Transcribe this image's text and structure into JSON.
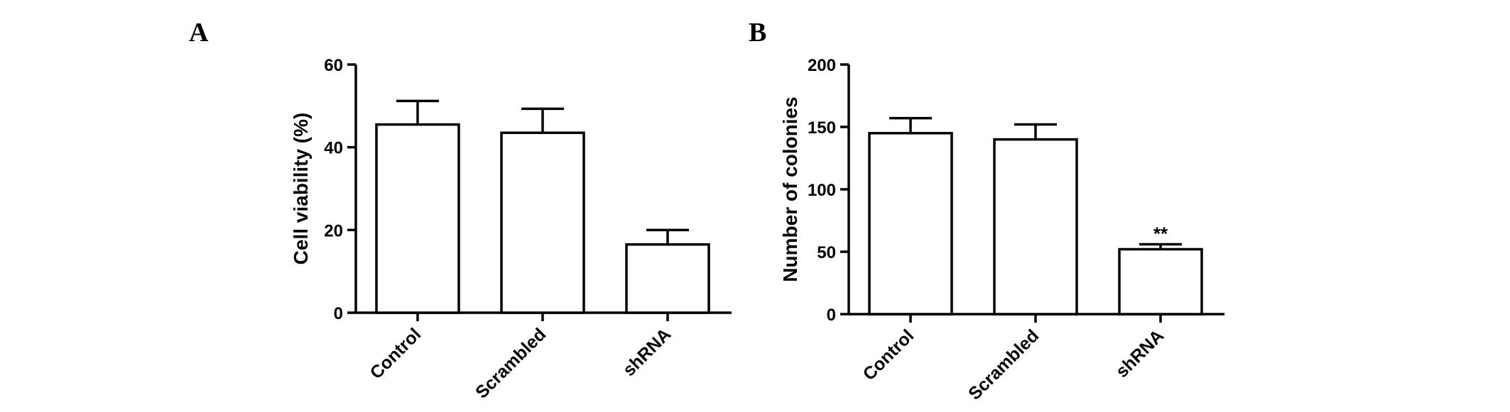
{
  "chart_data": [
    {
      "panel": "A",
      "type": "bar",
      "categories": [
        "Control",
        "Scrambled",
        "shRNA"
      ],
      "values": [
        45.5,
        43.5,
        16.5
      ],
      "errors": [
        5.7,
        5.8,
        3.5
      ],
      "title": "",
      "xlabel": "",
      "ylabel": "Cell viability (%)",
      "ylim": [
        0,
        60
      ],
      "yticks": [
        0,
        20,
        40,
        60
      ],
      "annotations": [
        "",
        "",
        ""
      ],
      "grid": false,
      "legend": "none"
    },
    {
      "panel": "B",
      "type": "bar",
      "categories": [
        "Control",
        "Scrambled",
        "shRNA"
      ],
      "values": [
        145,
        140,
        52
      ],
      "errors": [
        12,
        12,
        4
      ],
      "title": "",
      "xlabel": "",
      "ylabel": "Number of colonies",
      "ylim": [
        0,
        200
      ],
      "yticks": [
        0,
        50,
        100,
        150,
        200
      ],
      "annotations": [
        "",
        "",
        "**"
      ],
      "grid": false,
      "legend": "none"
    }
  ],
  "colors": {
    "bar_fill": "#ffffff",
    "stroke": "#000000"
  }
}
